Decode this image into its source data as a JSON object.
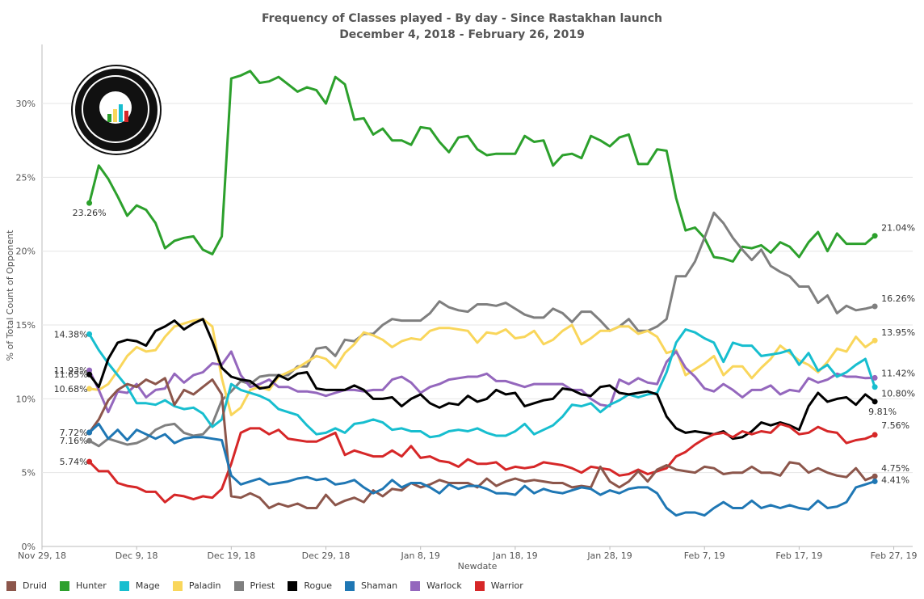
{
  "chart_data": {
    "type": "line",
    "title": "Frequency of Classes played - By day - Since Rastakhan launch",
    "subtitle": "December 4, 2018 - February 26, 2019",
    "xlabel": "Newdate",
    "ylabel": "% of Total Count of Opponent",
    "x_start": "Dec 4, 18",
    "x_end": "Feb 26, 19",
    "xlim": [
      "Nov 29, 18",
      "Mar 1, 19"
    ],
    "ylim": [
      0,
      34
    ],
    "y_ticks": [
      "0%",
      "5%",
      "10%",
      "15%",
      "20%",
      "25%",
      "30%"
    ],
    "x_ticks": [
      "Nov 29, 18",
      "Dec 9, 18",
      "Dec 19, 18",
      "Dec 29, 18",
      "Jan 8, 19",
      "Jan 18, 19",
      "Jan 28, 19",
      "Feb 7, 19",
      "Feb 17, 19",
      "Feb 27, 19"
    ],
    "grid": "horizontal",
    "legend_position": "bottom",
    "series": [
      {
        "name": "Hunter",
        "color": "#2ca02c",
        "start_label": "23.26%",
        "end_label": "21.04%",
        "values": [
          23.26,
          25.8,
          24.9,
          23.7,
          22.4,
          23.1,
          22.8,
          21.9,
          20.2,
          20.7,
          20.9,
          21.0,
          20.1,
          19.8,
          21.0,
          31.7,
          31.9,
          32.2,
          31.4,
          31.5,
          31.8,
          31.3,
          30.8,
          31.1,
          30.9,
          30.0,
          31.8,
          31.3,
          28.9,
          29.0,
          27.9,
          28.3,
          27.5,
          27.5,
          27.2,
          28.4,
          28.3,
          27.4,
          26.7,
          27.7,
          27.8,
          26.9,
          26.5,
          26.6,
          26.6,
          26.6,
          27.8,
          27.4,
          27.5,
          25.8,
          26.5,
          26.6,
          26.3,
          27.8,
          27.5,
          27.1,
          27.7,
          27.9,
          25.9,
          25.9,
          26.9,
          26.8,
          23.6,
          21.4,
          21.6,
          20.9,
          19.6,
          19.5,
          19.3,
          20.3,
          20.2,
          20.4,
          19.9,
          20.6,
          20.3,
          19.6,
          20.6,
          21.3,
          20.0,
          21.2,
          20.5,
          20.5,
          20.5,
          21.04
        ]
      },
      {
        "name": "Priest",
        "color": "#7f7f7f",
        "start_label": "7.16%",
        "end_label": "16.26%",
        "values": [
          7.16,
          6.8,
          7.3,
          7.1,
          6.9,
          7.0,
          7.3,
          7.9,
          8.2,
          8.3,
          7.7,
          7.5,
          7.6,
          8.3,
          9.9,
          10.5,
          11.2,
          11.0,
          11.5,
          11.6,
          11.6,
          11.6,
          12.2,
          12.2,
          13.4,
          13.5,
          12.9,
          14.0,
          13.9,
          14.4,
          14.4,
          15.0,
          15.4,
          15.3,
          15.3,
          15.3,
          15.8,
          16.6,
          16.2,
          16.0,
          15.9,
          16.4,
          16.4,
          16.3,
          16.5,
          16.1,
          15.7,
          15.5,
          15.5,
          16.1,
          15.8,
          15.2,
          15.9,
          15.9,
          15.3,
          14.6,
          14.9,
          15.4,
          14.6,
          14.6,
          14.9,
          15.4,
          18.3,
          18.3,
          19.3,
          20.9,
          22.6,
          21.9,
          20.9,
          20.1,
          19.4,
          20.1,
          19.0,
          18.6,
          18.3,
          17.6,
          17.6,
          16.5,
          17.0,
          15.8,
          16.3,
          16.0,
          16.1,
          16.26
        ]
      },
      {
        "name": "Paladin",
        "color": "#f9d65b",
        "start_label": "10.68%",
        "end_label": "13.95%",
        "values": [
          10.68,
          10.6,
          11.0,
          11.9,
          12.9,
          13.5,
          13.2,
          13.3,
          14.2,
          14.9,
          15.1,
          15.3,
          15.4,
          14.9,
          11.4,
          8.9,
          9.4,
          10.6,
          10.8,
          10.6,
          11.5,
          11.8,
          12.1,
          12.5,
          12.9,
          12.7,
          12.1,
          13.1,
          13.7,
          14.5,
          14.3,
          14.0,
          13.5,
          13.9,
          14.1,
          14.0,
          14.6,
          14.8,
          14.8,
          14.7,
          14.6,
          13.8,
          14.5,
          14.4,
          14.7,
          14.1,
          14.2,
          14.6,
          13.7,
          14.0,
          14.6,
          15.0,
          13.7,
          14.1,
          14.6,
          14.6,
          14.9,
          14.9,
          14.4,
          14.6,
          14.2,
          13.1,
          13.3,
          11.6,
          12.0,
          12.4,
          12.9,
          11.6,
          12.2,
          12.2,
          11.4,
          12.1,
          12.7,
          13.6,
          13.1,
          12.6,
          12.3,
          11.8,
          12.5,
          13.4,
          13.2,
          14.2,
          13.5,
          13.95
        ]
      },
      {
        "name": "Warlock",
        "color": "#9467bd",
        "start_label": "11.93%",
        "end_label": "11.42%",
        "values": [
          11.93,
          10.6,
          9.1,
          10.5,
          10.4,
          11.0,
          10.1,
          10.6,
          10.7,
          11.7,
          11.1,
          11.6,
          11.8,
          12.4,
          12.3,
          13.2,
          11.6,
          10.8,
          11.0,
          11.3,
          10.8,
          10.8,
          10.5,
          10.5,
          10.4,
          10.2,
          10.4,
          10.6,
          10.6,
          10.5,
          10.6,
          10.6,
          11.3,
          11.5,
          11.1,
          10.4,
          10.8,
          11.0,
          11.3,
          11.4,
          11.5,
          11.5,
          11.7,
          11.2,
          11.2,
          11.0,
          10.8,
          11.0,
          11.0,
          11.0,
          11.0,
          10.6,
          10.6,
          10.0,
          9.6,
          9.5,
          11.3,
          11.0,
          11.4,
          11.1,
          11.0,
          12.5,
          13.2,
          12.1,
          11.5,
          10.7,
          10.5,
          11.0,
          10.6,
          10.1,
          10.6,
          10.6,
          10.9,
          10.3,
          10.6,
          10.5,
          11.4,
          11.1,
          11.3,
          11.7,
          11.5,
          11.5,
          11.4,
          11.42
        ]
      },
      {
        "name": "Mage",
        "color": "#17becf",
        "start_label": "14.38%",
        "end_label": "10.80%",
        "values": [
          14.38,
          13.3,
          12.4,
          11.6,
          10.8,
          9.7,
          9.7,
          9.6,
          9.9,
          9.5,
          9.3,
          9.4,
          9.0,
          8.1,
          8.6,
          11.0,
          10.6,
          10.4,
          10.2,
          9.9,
          9.3,
          9.1,
          8.9,
          8.2,
          7.6,
          7.7,
          8.0,
          7.7,
          8.3,
          8.4,
          8.6,
          8.4,
          7.9,
          8.0,
          7.8,
          7.8,
          7.4,
          7.5,
          7.8,
          7.9,
          7.8,
          8.0,
          7.7,
          7.5,
          7.5,
          7.8,
          8.3,
          7.6,
          7.9,
          8.2,
          8.8,
          9.6,
          9.5,
          9.7,
          9.1,
          9.6,
          9.9,
          10.3,
          10.1,
          10.3,
          10.4,
          11.8,
          13.8,
          14.7,
          14.5,
          14.1,
          13.8,
          12.5,
          13.8,
          13.6,
          13.6,
          12.9,
          13.0,
          13.1,
          13.3,
          12.3,
          13.1,
          11.9,
          12.3,
          11.5,
          11.8,
          12.3,
          12.7,
          10.8
        ]
      },
      {
        "name": "Rogue",
        "color": "#000000",
        "start_label": "11.65%",
        "end_label": "9.81%",
        "values": [
          11.65,
          10.8,
          12.7,
          13.8,
          14.0,
          13.9,
          13.6,
          14.6,
          14.9,
          15.3,
          14.7,
          15.1,
          15.4,
          13.9,
          12.1,
          11.5,
          11.3,
          11.2,
          10.7,
          10.8,
          11.6,
          11.3,
          11.7,
          11.8,
          10.7,
          10.6,
          10.6,
          10.6,
          10.9,
          10.6,
          10.0,
          10.0,
          10.1,
          9.5,
          10.0,
          10.3,
          9.7,
          9.4,
          9.7,
          9.6,
          10.2,
          9.8,
          10.0,
          10.6,
          10.3,
          10.4,
          9.5,
          9.7,
          9.9,
          10.0,
          10.7,
          10.6,
          10.3,
          10.2,
          10.8,
          10.9,
          10.4,
          10.3,
          10.4,
          10.5,
          10.3,
          8.8,
          8.0,
          7.7,
          7.8,
          7.7,
          7.6,
          7.8,
          7.3,
          7.4,
          7.8,
          8.4,
          8.2,
          8.4,
          8.2,
          7.9,
          9.5,
          10.4,
          9.8,
          10.0,
          10.1,
          9.6,
          10.3,
          9.81
        ]
      },
      {
        "name": "Warrior",
        "color": "#d62728",
        "start_label": "5.74%",
        "end_label": "7.56%",
        "values": [
          5.74,
          5.1,
          5.1,
          4.3,
          4.1,
          4.0,
          3.7,
          3.7,
          3.0,
          3.5,
          3.4,
          3.2,
          3.4,
          3.3,
          3.9,
          5.6,
          7.7,
          8.0,
          8.0,
          7.6,
          7.9,
          7.3,
          7.2,
          7.1,
          7.1,
          7.4,
          7.7,
          6.2,
          6.5,
          6.3,
          6.1,
          6.1,
          6.5,
          6.1,
          6.8,
          6.0,
          6.1,
          5.8,
          5.7,
          5.4,
          5.9,
          5.6,
          5.6,
          5.7,
          5.2,
          5.4,
          5.3,
          5.4,
          5.7,
          5.6,
          5.5,
          5.3,
          5.0,
          5.4,
          5.3,
          5.2,
          4.8,
          4.9,
          5.2,
          4.9,
          5.1,
          5.3,
          6.1,
          6.4,
          6.9,
          7.3,
          7.6,
          7.7,
          7.4,
          7.8,
          7.6,
          7.8,
          7.7,
          8.3,
          8.1,
          7.6,
          7.7,
          8.1,
          7.8,
          7.7,
          7.0,
          7.2,
          7.3,
          7.56
        ]
      },
      {
        "name": "Druid",
        "color": "#8c564b",
        "start_label": "7.72%",
        "end_label": "4.75%",
        "values": [
          7.72,
          8.6,
          9.9,
          10.6,
          11.0,
          10.8,
          11.3,
          11.0,
          11.4,
          9.6,
          10.6,
          10.3,
          10.8,
          11.3,
          10.3,
          3.4,
          3.3,
          3.6,
          3.3,
          2.6,
          2.9,
          2.7,
          2.9,
          2.6,
          2.6,
          3.5,
          2.8,
          3.1,
          3.3,
          3.0,
          3.8,
          3.4,
          3.9,
          3.8,
          4.3,
          4.0,
          4.2,
          4.5,
          4.3,
          4.3,
          4.3,
          4.0,
          4.6,
          4.1,
          4.4,
          4.6,
          4.4,
          4.5,
          4.4,
          4.3,
          4.3,
          4.0,
          4.1,
          4.0,
          5.4,
          4.4,
          4.0,
          4.4,
          5.1,
          4.4,
          5.2,
          5.5,
          5.2,
          5.1,
          5.0,
          5.4,
          5.3,
          4.9,
          5.0,
          5.0,
          5.4,
          5.0,
          5.0,
          4.8,
          5.7,
          5.6,
          5.0,
          5.3,
          5.0,
          4.8,
          4.7,
          5.3,
          4.5,
          4.75
        ]
      },
      {
        "name": "Shaman",
        "color": "#1f77b4",
        "start_label": "",
        "end_label": "4.41%",
        "values": [
          7.72,
          8.3,
          7.3,
          7.9,
          7.2,
          7.9,
          7.6,
          7.3,
          7.6,
          7.0,
          7.3,
          7.4,
          7.4,
          7.3,
          7.2,
          4.8,
          4.2,
          4.4,
          4.6,
          4.2,
          4.3,
          4.4,
          4.6,
          4.7,
          4.5,
          4.6,
          4.2,
          4.3,
          4.5,
          4.0,
          3.6,
          3.9,
          4.5,
          4.0,
          4.3,
          4.3,
          4.0,
          3.6,
          4.2,
          3.9,
          4.1,
          4.1,
          3.9,
          3.6,
          3.6,
          3.5,
          4.1,
          3.6,
          3.9,
          3.7,
          3.6,
          3.8,
          4.0,
          3.9,
          3.5,
          3.8,
          3.6,
          3.9,
          4.0,
          4.0,
          3.6,
          2.6,
          2.1,
          2.3,
          2.3,
          2.1,
          2.6,
          3.0,
          2.6,
          2.6,
          3.1,
          2.6,
          2.8,
          2.6,
          2.8,
          2.6,
          2.5,
          3.1,
          2.6,
          2.7,
          3.0,
          4.0,
          4.2,
          4.41
        ]
      }
    ],
    "legend": [
      "Druid",
      "Hunter",
      "Mage",
      "Paladin",
      "Priest",
      "Rogue",
      "Shaman",
      "Warlock",
      "Warrior"
    ]
  }
}
